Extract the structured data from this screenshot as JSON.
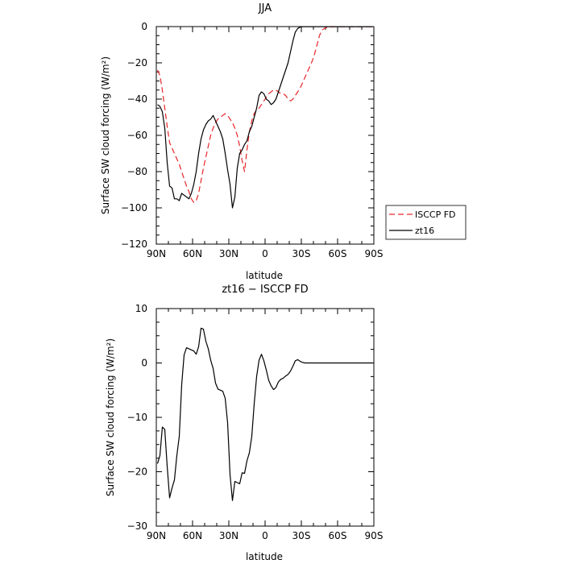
{
  "colors": {
    "isccp": "#e8262a",
    "model": "#000000",
    "axis": "#000000",
    "background": "#ffffff"
  },
  "chart_data": [
    {
      "type": "line",
      "title": "JJA",
      "xlabel": "latitude",
      "ylabel": "Surface SW cloud forcing (W/m²)",
      "xlim": [
        90,
        -90
      ],
      "ylim": [
        -120,
        0
      ],
      "xticks": [
        90,
        60,
        30,
        0,
        -30,
        -60,
        -90
      ],
      "xtick_labels": [
        "90N",
        "60N",
        "30N",
        "0",
        "30S",
        "60S",
        "90S"
      ],
      "yticks": [
        0,
        -20,
        -40,
        -60,
        -80,
        -100,
        -120
      ],
      "ytick_labels": [
        "0",
        "−20",
        "−40",
        "−60",
        "−80",
        "−100",
        "−120"
      ],
      "grid": false,
      "legend": "right",
      "series": [
        {
          "name": "ISCCP FD",
          "style": "dashed",
          "color": "#e8262a",
          "x": [
            89,
            87,
            85,
            83,
            81,
            79,
            77,
            75,
            73,
            71,
            69,
            67,
            65,
            63,
            61,
            59,
            57,
            55,
            53,
            51,
            49,
            47,
            45,
            43,
            41,
            39,
            37,
            35,
            33,
            31,
            29,
            27,
            25,
            23,
            21,
            19,
            17,
            15,
            13,
            11,
            9,
            7,
            5,
            3,
            1,
            -1,
            -3,
            -5,
            -7,
            -9,
            -11,
            -13,
            -15,
            -17,
            -19,
            -21,
            -23,
            -25,
            -27,
            -29,
            -31,
            -33,
            -35,
            -37,
            -39,
            -41,
            -43,
            -45,
            -47,
            -49,
            -51,
            -53,
            -55,
            -57,
            -59,
            -61,
            -63,
            -65,
            -67,
            -69,
            -71,
            -73,
            -75,
            -77,
            -79,
            -81,
            -83,
            -85,
            -87,
            -89
          ],
          "y": [
            -24,
            -27,
            -35,
            -45,
            -55,
            -64,
            -67,
            -70,
            -73,
            -76,
            -80,
            -84,
            -88,
            -91,
            -95,
            -97,
            -96,
            -92,
            -85,
            -78,
            -72,
            -66,
            -60,
            -56,
            -53,
            -51,
            -50,
            -49,
            -48,
            -49,
            -51,
            -53,
            -56,
            -60,
            -66,
            -74,
            -80,
            -68,
            -58,
            -52,
            -48,
            -46,
            -45,
            -43,
            -41,
            -39,
            -37,
            -36,
            -35,
            -35,
            -36,
            -37,
            -37,
            -38,
            -40,
            -41,
            -40,
            -38,
            -36,
            -34,
            -31,
            -28,
            -25,
            -22,
            -19,
            -15,
            -10,
            -5,
            -2,
            -1,
            -0.5,
            -0.3,
            -0.2,
            -0.1,
            -0.1,
            -0.1,
            -0.1,
            -0.1,
            -0.1,
            -0.1,
            -0.1,
            -0.1,
            -0.1,
            -0.1,
            -0.1,
            -0.1,
            -0.1,
            -0.1,
            -0.1,
            -0.1
          ]
        },
        {
          "name": "zt16",
          "style": "solid",
          "color": "#000000",
          "x": [
            89,
            87,
            85,
            83,
            81,
            79,
            77,
            75,
            73,
            71,
            69,
            67,
            65,
            63,
            61,
            59,
            57,
            55,
            53,
            51,
            49,
            47,
            45,
            43,
            41,
            39,
            37,
            35,
            33,
            31,
            29,
            27,
            25,
            23,
            21,
            19,
            17,
            15,
            13,
            11,
            9,
            7,
            5,
            3,
            1,
            -1,
            -3,
            -5,
            -7,
            -9,
            -11,
            -13,
            -15,
            -17,
            -19,
            -21,
            -23,
            -25,
            -27,
            -29,
            -31,
            -33,
            -35,
            -37,
            -39,
            -41,
            -43,
            -45,
            -47,
            -49,
            -51,
            -53,
            -55,
            -57,
            -59,
            -61,
            -63,
            -65,
            -67,
            -69,
            -71,
            -73,
            -75,
            -77,
            -79,
            -81,
            -83,
            -85,
            -87,
            -89
          ],
          "y": [
            -43,
            -44,
            -47,
            -56,
            -75,
            -88,
            -89,
            -95,
            -95,
            -96,
            -92,
            -93,
            -94,
            -95,
            -92,
            -87,
            -80,
            -70,
            -62,
            -57,
            -54,
            -52,
            -51,
            -49,
            -52,
            -55,
            -58,
            -62,
            -70,
            -79,
            -87,
            -100,
            -94,
            -78,
            -70,
            -68,
            -65,
            -63,
            -58,
            -55,
            -50,
            -45,
            -38,
            -36,
            -37,
            -40,
            -41,
            -43,
            -42,
            -40,
            -36,
            -32,
            -28,
            -24,
            -20,
            -14,
            -8,
            -3,
            -1,
            -0.3,
            -0.1,
            -0.1,
            -0.1,
            -0.1,
            -0.1,
            -0.1,
            -0.1,
            -0.1,
            -0.1,
            -0.1,
            -0.1,
            -0.1,
            -0.1,
            -0.1,
            -0.1,
            -0.1,
            -0.1,
            -0.1,
            -0.1,
            -0.1,
            -0.1,
            -0.1,
            -0.1,
            -0.1,
            -0.1,
            -0.1,
            -0.1,
            -0.1,
            -0.1,
            -0.1
          ]
        }
      ]
    },
    {
      "type": "line",
      "title": "zt16 − ISCCP FD",
      "xlabel": "latitude",
      "ylabel": "Surface SW cloud forcing (W/m²)",
      "xlim": [
        90,
        -90
      ],
      "ylim": [
        -30,
        10
      ],
      "xticks": [
        90,
        60,
        30,
        0,
        -30,
        -60,
        -90
      ],
      "xtick_labels": [
        "90N",
        "60N",
        "30N",
        "0",
        "30S",
        "60S",
        "90S"
      ],
      "yticks": [
        10,
        0,
        -10,
        -20,
        -30
      ],
      "ytick_labels": [
        "10",
        "0",
        "−10",
        "−20",
        "−30"
      ],
      "grid": false,
      "series": [
        {
          "style": "solid",
          "color": "#000000",
          "x": [
            89,
            87,
            85,
            83,
            81,
            79,
            77,
            75,
            73,
            71,
            69,
            67,
            65,
            63,
            61,
            59,
            57,
            55,
            53,
            51,
            49,
            47,
            45,
            43,
            41,
            39,
            37,
            35,
            33,
            31,
            29,
            27,
            25,
            23,
            21,
            19,
            17,
            15,
            13,
            11,
            9,
            7,
            5,
            3,
            1,
            -1,
            -3,
            -5,
            -7,
            -9,
            -11,
            -13,
            -15,
            -17,
            -19,
            -21,
            -23,
            -25,
            -27,
            -29,
            -31,
            -33,
            -35,
            -37,
            -39,
            -41,
            -43,
            -45,
            -47,
            -49,
            -51,
            -53,
            -55,
            -57,
            -59,
            -61,
            -63,
            -65,
            -67,
            -69,
            -71,
            -73,
            -75,
            -77,
            -79,
            -81,
            -83,
            -85,
            -87,
            -89
          ],
          "y": [
            -18.5,
            -17,
            -11.8,
            -12.2,
            -19,
            -24.8,
            -23,
            -21.5,
            -17,
            -13.5,
            -4,
            1.5,
            2.8,
            2.6,
            2.4,
            2.2,
            1.6,
            3,
            6.4,
            6.2,
            4,
            2.6,
            0.5,
            -1,
            -3.7,
            -4.8,
            -5,
            -5.2,
            -6.5,
            -11,
            -20.5,
            -25.3,
            -21.8,
            -22,
            -22.2,
            -20.2,
            -20.3,
            -18,
            -16.5,
            -13.5,
            -7.5,
            -2.5,
            0.5,
            1.6,
            0.4,
            -1.3,
            -3.2,
            -4.2,
            -4.9,
            -4.5,
            -3.5,
            -3,
            -2.8,
            -2.4,
            -2.1,
            -1.5,
            -0.6,
            0.4,
            0.6,
            0.3,
            0.1,
            0,
            0,
            0,
            0,
            0,
            0,
            0,
            0,
            0,
            0,
            0,
            0,
            0,
            0,
            0,
            0,
            0,
            0,
            0,
            0,
            0,
            0,
            0,
            0,
            0,
            0,
            0,
            0,
            0
          ]
        }
      ]
    }
  ]
}
